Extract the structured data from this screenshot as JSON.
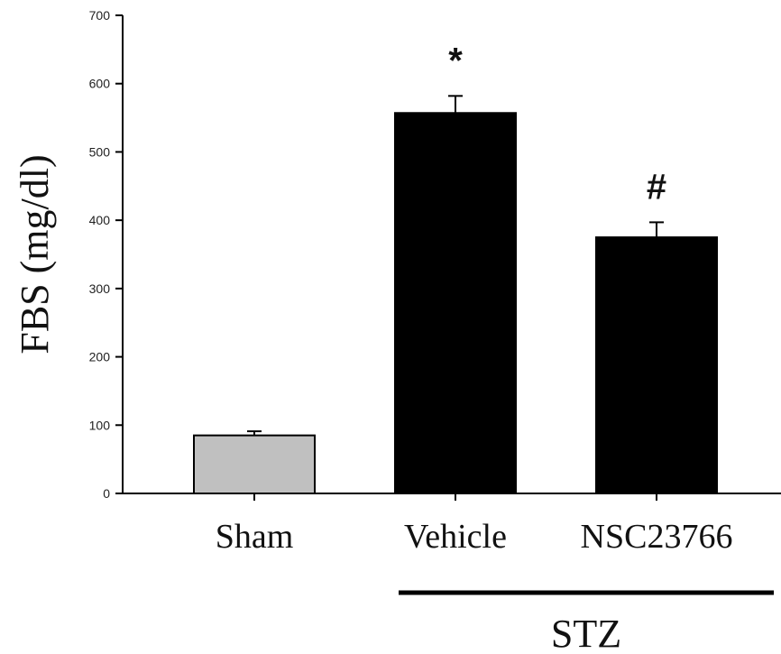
{
  "chart_data": {
    "type": "bar",
    "ylabel": "FBS (mg/dl)",
    "ylim": [
      0,
      700
    ],
    "yticks": [
      0,
      100,
      200,
      300,
      400,
      500,
      600,
      700
    ],
    "categories": [
      "Sham",
      "Vehicle",
      "NSC23766"
    ],
    "values": [
      85,
      557,
      375
    ],
    "errors": [
      6,
      25,
      22
    ],
    "bar_colors": [
      "#c0c0c0",
      "#000000",
      "#000000"
    ],
    "significance": [
      "",
      "*",
      "#"
    ],
    "group_label": "STZ",
    "group_categories": [
      "Vehicle",
      "NSC23766"
    ],
    "grid": false
  }
}
